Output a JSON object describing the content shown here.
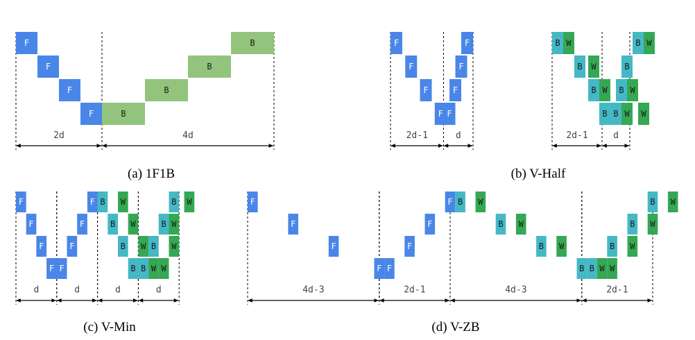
{
  "colors": {
    "forward": "#4a86e8",
    "backward_1f1b": "#93c47d",
    "backward": "#45b8c6",
    "weight": "#34a853",
    "text": "#000000",
    "line": "#000000"
  },
  "cell_letters": {
    "forward": "F",
    "backward": "B",
    "weight": "W"
  },
  "panels": [
    {
      "id": "a",
      "caption": "(a) 1F1B",
      "cells": [
        {
          "type": "forward",
          "col": 0,
          "row": 0
        },
        {
          "type": "forward",
          "col": 1,
          "row": 1
        },
        {
          "type": "forward",
          "col": 2,
          "row": 2
        },
        {
          "type": "forward",
          "col": 3,
          "row": 3
        },
        {
          "type": "backward_1f1b",
          "col": 4,
          "row": 3,
          "span": 2
        },
        {
          "type": "backward_1f1b",
          "col": 6,
          "row": 2,
          "span": 2
        },
        {
          "type": "backward_1f1b",
          "col": 8,
          "row": 1,
          "span": 2
        },
        {
          "type": "backward_1f1b",
          "col": 10,
          "row": 0,
          "span": 2
        }
      ],
      "dimensions": [
        {
          "from": 0,
          "to": 4,
          "label": "2d"
        },
        {
          "from": 4,
          "to": 12,
          "label": "4d"
        }
      ]
    },
    {
      "id": "b-forward",
      "caption": "",
      "cells": [
        {
          "type": "forward",
          "col": 0,
          "row": 0
        },
        {
          "type": "forward",
          "col": 1.25,
          "row": 1
        },
        {
          "type": "forward",
          "col": 2.5,
          "row": 2
        },
        {
          "type": "forward",
          "col": 3.75,
          "row": 3
        },
        {
          "type": "forward",
          "col": 4.5,
          "row": 3
        },
        {
          "type": "forward",
          "col": 5,
          "row": 2
        },
        {
          "type": "forward",
          "col": 5.5,
          "row": 1
        },
        {
          "type": "forward",
          "col": 6,
          "row": 0
        }
      ],
      "dimensions": [
        {
          "from": 0,
          "to": 4.5,
          "label": "2d-1"
        },
        {
          "from": 4.5,
          "to": 7,
          "label": "d"
        }
      ]
    },
    {
      "id": "b-backward",
      "caption": "(b) V-Half",
      "cells": [
        {
          "type": "backward",
          "col": 0,
          "row": 0
        },
        {
          "type": "weight",
          "col": 1,
          "row": 0
        },
        {
          "type": "backward",
          "col": 2,
          "row": 1
        },
        {
          "type": "weight",
          "col": 3.25,
          "row": 1
        },
        {
          "type": "backward",
          "col": 3.25,
          "row": 2
        },
        {
          "type": "weight",
          "col": 4.25,
          "row": 2
        },
        {
          "type": "backward",
          "col": 5.75,
          "row": 2
        },
        {
          "type": "weight",
          "col": 6.75,
          "row": 2
        },
        {
          "type": "backward",
          "col": 4.25,
          "row": 3
        },
        {
          "type": "backward",
          "col": 5.25,
          "row": 3
        },
        {
          "type": "weight",
          "col": 6.25,
          "row": 3
        },
        {
          "type": "weight",
          "col": 7.75,
          "row": 3
        },
        {
          "type": "backward",
          "col": 6.25,
          "row": 1
        },
        {
          "type": "backward",
          "col": 7.25,
          "row": 0
        },
        {
          "type": "weight",
          "col": 8.25,
          "row": 0
        }
      ],
      "dimensions": [
        {
          "from": 0,
          "to": 4.5,
          "label": "2d-1"
        },
        {
          "from": 4.5,
          "to": 7,
          "label": "d"
        }
      ]
    },
    {
      "id": "c",
      "caption": "(c) V-Min",
      "cells": [
        {
          "type": "forward",
          "col": 0,
          "row": 0
        },
        {
          "type": "forward",
          "col": 1,
          "row": 1
        },
        {
          "type": "forward",
          "col": 2,
          "row": 2
        },
        {
          "type": "forward",
          "col": 3,
          "row": 3
        },
        {
          "type": "forward",
          "col": 4,
          "row": 3
        },
        {
          "type": "forward",
          "col": 5,
          "row": 2
        },
        {
          "type": "forward",
          "col": 6,
          "row": 1
        },
        {
          "type": "forward",
          "col": 7,
          "row": 0
        },
        {
          "type": "backward",
          "col": 8,
          "row": 0
        },
        {
          "type": "weight",
          "col": 10,
          "row": 0
        },
        {
          "type": "backward",
          "col": 9,
          "row": 1
        },
        {
          "type": "weight",
          "col": 11,
          "row": 1
        },
        {
          "type": "backward",
          "col": 10,
          "row": 2
        },
        {
          "type": "weight",
          "col": 12,
          "row": 2
        },
        {
          "type": "backward",
          "col": 13,
          "row": 2
        },
        {
          "type": "weight",
          "col": 15,
          "row": 2
        },
        {
          "type": "backward",
          "col": 11,
          "row": 3
        },
        {
          "type": "backward",
          "col": 12,
          "row": 3
        },
        {
          "type": "weight",
          "col": 13,
          "row": 3
        },
        {
          "type": "weight",
          "col": 14,
          "row": 3
        },
        {
          "type": "backward",
          "col": 14,
          "row": 1
        },
        {
          "type": "weight",
          "col": 15,
          "row": 1
        },
        {
          "type": "backward",
          "col": 15,
          "row": 0
        },
        {
          "type": "weight",
          "col": 16.5,
          "row": 0
        }
      ],
      "dimensions": [
        {
          "from": 0,
          "to": 4,
          "label": "d"
        },
        {
          "from": 4,
          "to": 8,
          "label": "d"
        },
        {
          "from": 8,
          "to": 12,
          "label": "d"
        },
        {
          "from": 12,
          "to": 16,
          "label": "d"
        }
      ]
    },
    {
      "id": "d",
      "caption": "(d) V-ZB",
      "cells": [
        {
          "type": "forward",
          "col": 0,
          "row": 0
        },
        {
          "type": "forward",
          "col": 4,
          "row": 1
        },
        {
          "type": "forward",
          "col": 8,
          "row": 2
        },
        {
          "type": "forward",
          "col": 12.5,
          "row": 3
        },
        {
          "type": "forward",
          "col": 13.5,
          "row": 3
        },
        {
          "type": "forward",
          "col": 15.5,
          "row": 2
        },
        {
          "type": "forward",
          "col": 17.5,
          "row": 1
        },
        {
          "type": "forward",
          "col": 19.5,
          "row": 0
        },
        {
          "type": "backward",
          "col": 20.5,
          "row": 0
        },
        {
          "type": "weight",
          "col": 22.5,
          "row": 0
        },
        {
          "type": "backward",
          "col": 24.5,
          "row": 1
        },
        {
          "type": "weight",
          "col": 26.5,
          "row": 1
        },
        {
          "type": "backward",
          "col": 28.5,
          "row": 2
        },
        {
          "type": "weight",
          "col": 30.5,
          "row": 2
        },
        {
          "type": "backward",
          "col": 32.5,
          "row": 3
        },
        {
          "type": "backward",
          "col": 33.5,
          "row": 3
        },
        {
          "type": "weight",
          "col": 34.5,
          "row": 3
        },
        {
          "type": "weight",
          "col": 35.5,
          "row": 3
        },
        {
          "type": "backward",
          "col": 35.5,
          "row": 2
        },
        {
          "type": "weight",
          "col": 37.5,
          "row": 2
        },
        {
          "type": "backward",
          "col": 37.5,
          "row": 1
        },
        {
          "type": "weight",
          "col": 39.5,
          "row": 1
        },
        {
          "type": "backward",
          "col": 39.5,
          "row": 0
        },
        {
          "type": "weight",
          "col": 41.5,
          "row": 0
        }
      ],
      "dimensions": [
        {
          "from": 0,
          "to": 13,
          "label": "4d-3"
        },
        {
          "from": 13,
          "to": 20,
          "label": "2d-1"
        },
        {
          "from": 20,
          "to": 33,
          "label": "4d-3"
        },
        {
          "from": 33,
          "to": 40,
          "label": "2d-1"
        }
      ]
    }
  ]
}
